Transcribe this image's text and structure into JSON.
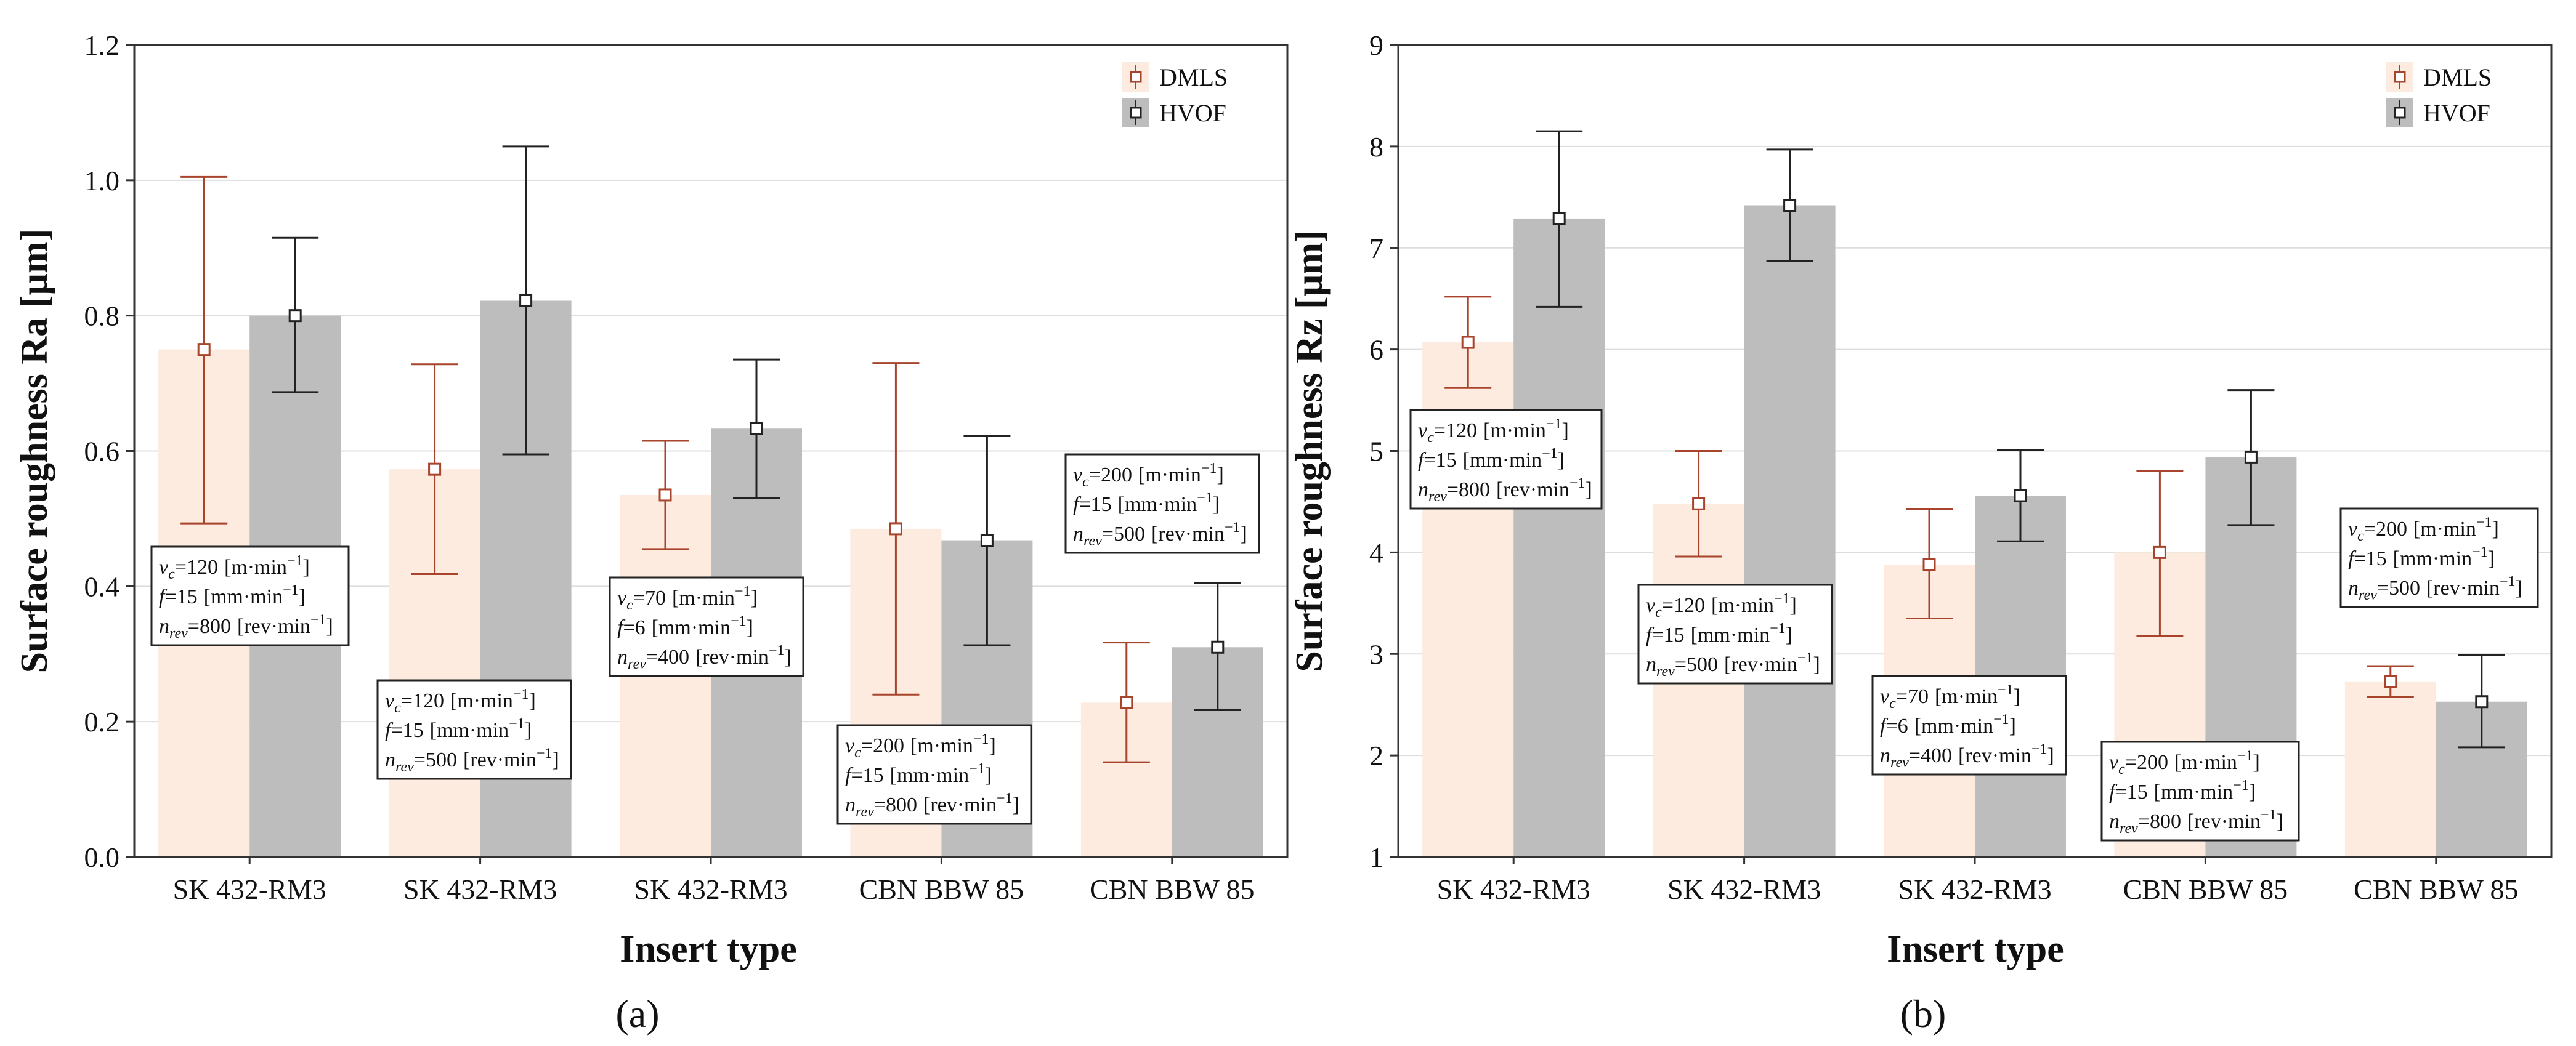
{
  "colors": {
    "dmls_fill": "#fdebdf",
    "dmls_line": "#a8442c",
    "hvof_fill": "#bdbdbd",
    "hvof_line": "#222222",
    "grid": "#dddddd",
    "frame": "#333333"
  },
  "chart_data": [
    {
      "type": "bar",
      "panel_label": "(a)",
      "xlabel": "Insert type",
      "ylabel": "Surface roughness Ra [µm]",
      "ylim": [
        0,
        1.2
      ],
      "yticks": [
        "0.0",
        "0.2",
        "0.4",
        "0.6",
        "0.8",
        "1.0",
        "1.2"
      ],
      "grid": true,
      "legend_position": "top-right",
      "categories": [
        "SK 432-RM3",
        "SK 432-RM3",
        "SK 432-RM3",
        "CBN BBW 85",
        "CBN BBW 85"
      ],
      "series": [
        {
          "name": "DMLS",
          "values": [
            0.75,
            0.573,
            0.535,
            0.485,
            0.228
          ],
          "lower": [
            0.493,
            0.418,
            0.455,
            0.24,
            0.14
          ],
          "upper": [
            1.005,
            0.728,
            0.615,
            0.73,
            0.317
          ]
        },
        {
          "name": "HVOF",
          "values": [
            0.8,
            0.822,
            0.633,
            0.468,
            0.31
          ],
          "lower": [
            0.687,
            0.595,
            0.53,
            0.313,
            0.217
          ],
          "upper": [
            0.915,
            1.05,
            0.735,
            0.622,
            0.405
          ]
        }
      ],
      "annotations": [
        {
          "vc": "120",
          "f": "15",
          "n": "800"
        },
        {
          "vc": "120",
          "f": "15",
          "n": "500"
        },
        {
          "vc": "70",
          "f": "6",
          "n": "400"
        },
        {
          "vc": "200",
          "f": "15",
          "n": "800"
        },
        {
          "vc": "200",
          "f": "15",
          "n": "500"
        }
      ]
    },
    {
      "type": "bar",
      "panel_label": "(b)",
      "xlabel": "Insert type",
      "ylabel": "Surface roughness Rz [µm]",
      "ylim": [
        1,
        9
      ],
      "yticks": [
        "1",
        "2",
        "3",
        "4",
        "5",
        "6",
        "7",
        "8",
        "9"
      ],
      "grid": true,
      "legend_position": "top-right",
      "categories": [
        "SK 432-RM3",
        "SK 432-RM3",
        "SK 432-RM3",
        "CBN BBW 85",
        "CBN BBW 85"
      ],
      "series": [
        {
          "name": "DMLS",
          "values": [
            6.07,
            4.48,
            3.88,
            4.0,
            2.73
          ],
          "lower": [
            5.62,
            3.96,
            3.35,
            3.18,
            2.58
          ],
          "upper": [
            6.52,
            5.0,
            4.43,
            4.8,
            2.88
          ]
        },
        {
          "name": "HVOF",
          "values": [
            7.29,
            7.42,
            4.56,
            4.94,
            2.53
          ],
          "lower": [
            6.42,
            6.87,
            4.11,
            4.27,
            2.08
          ],
          "upper": [
            8.15,
            7.97,
            5.01,
            5.6,
            2.99
          ]
        }
      ],
      "annotations": [
        {
          "vc": "120",
          "f": "15",
          "n": "800"
        },
        {
          "vc": "120",
          "f": "15",
          "n": "500"
        },
        {
          "vc": "70",
          "f": "6",
          "n": "400"
        },
        {
          "vc": "200",
          "f": "15",
          "n": "800"
        },
        {
          "vc": "200",
          "f": "15",
          "n": "500"
        }
      ]
    }
  ],
  "annotation_text": {
    "vc_sym": "v",
    "vc_sub": "c",
    "f_sym": "f",
    "n_sym": "n",
    "n_sub": "rev",
    "vc_unit": "[m·min",
    "f_unit": "[mm·min",
    "n_unit": "[rev·min",
    "unit_exp": "−1",
    "unit_close": "]",
    "eq": "="
  }
}
